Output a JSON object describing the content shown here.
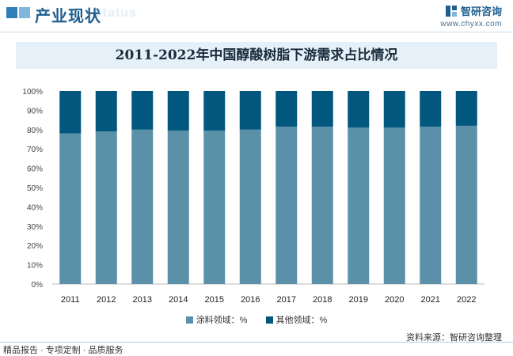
{
  "header": {
    "section_title": "产业现状",
    "section_watermark": "Status",
    "brand_name": "智研咨询",
    "brand_url": "www.chyxx.com"
  },
  "chart_data": {
    "type": "bar",
    "stacked": true,
    "title": "2011-2022年中国醇酸树脂下游需求占比情况",
    "categories": [
      "2011",
      "2012",
      "2013",
      "2014",
      "2015",
      "2016",
      "2017",
      "2018",
      "2019",
      "2020",
      "2021",
      "2022"
    ],
    "series": [
      {
        "name": "涂料领域：%",
        "color": "#5b90a9",
        "values": [
          78,
          79,
          80,
          79.5,
          79.5,
          80,
          81.5,
          81.5,
          81,
          81,
          81.5,
          82
        ]
      },
      {
        "name": "其他领域：%",
        "color": "#01577e",
        "values": [
          22,
          21,
          20,
          20.5,
          20.5,
          20,
          18.5,
          18.5,
          19,
          19,
          18.5,
          18
        ]
      }
    ],
    "ylim": [
      0,
      100
    ],
    "yticks": [
      "0%",
      "10%",
      "20%",
      "30%",
      "40%",
      "50%",
      "60%",
      "70%",
      "80%",
      "90%",
      "100%"
    ],
    "grid": false,
    "legend_position": "bottom"
  },
  "footer": {
    "source": "资料来源：智研咨询整理",
    "tagline": "精品报告 · 专项定制 · 品质服务"
  }
}
